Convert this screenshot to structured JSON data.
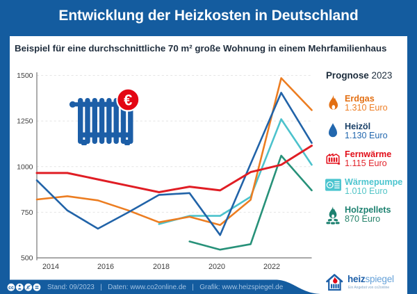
{
  "header": {
    "title": "Entwicklung der Heizkosten in Deutschland"
  },
  "subtitle": "Beispiel für eine durchschnittliche 70 m² große Wohnung in einem Mehrfamilienhaus",
  "legend": {
    "heading_bold": "Prognose",
    "heading_year": "2023",
    "items": [
      {
        "name": "Erdgas",
        "value": "1.310 Euro",
        "icon": "flame-icon",
        "name_color": "#e36f12",
        "value_color": "#ee7f26"
      },
      {
        "name": "Heizöl",
        "value": "1.130 Euro",
        "icon": "drop-icon",
        "name_color": "#1b4168",
        "value_color": "#2267ae"
      },
      {
        "name": "Fernwärme",
        "value": "1.115 Euro",
        "icon": "heating-plant-icon",
        "name_color": "#e20d18",
        "value_color": "#e2242b"
      },
      {
        "name": "Wärmepumpe",
        "value": "1.010 Euro",
        "icon": "heat-pump-icon",
        "name_color": "#4cc5cf",
        "value_color": "#52c5c7"
      },
      {
        "name": "Holzpellets",
        "value": "870 Euro",
        "icon": "pellet-fire-icon",
        "name_color": "#1d8170",
        "value_color": "#26836b"
      }
    ]
  },
  "chart_data": {
    "type": "line",
    "x": [
      2014,
      2015,
      2016,
      2017,
      2018,
      2019,
      2020,
      2021,
      2022,
      2023
    ],
    "series": [
      {
        "name": "Wärmepumpe",
        "color": "#4cc2cc",
        "values": [
          null,
          null,
          null,
          null,
          685,
          730,
          730,
          835,
          1260,
          1010
        ]
      },
      {
        "name": "Erdgas",
        "color": "#ec7d21",
        "values": [
          820,
          838,
          815,
          760,
          695,
          725,
          680,
          818,
          1485,
          1310
        ]
      },
      {
        "name": "Holzpellets",
        "color": "#279179",
        "values": [
          null,
          null,
          null,
          null,
          null,
          590,
          545,
          575,
          1060,
          870
        ]
      },
      {
        "name": "Heizöl",
        "color": "#2163a8",
        "values": [
          925,
          760,
          660,
          750,
          845,
          855,
          625,
          1015,
          1405,
          1130
        ]
      },
      {
        "name": "Fernwärme",
        "color": "#e01d24",
        "values": [
          965,
          965,
          930,
          895,
          860,
          890,
          870,
          970,
          1010,
          1115
        ]
      }
    ],
    "ylim": [
      500,
      1500
    ],
    "yticks": [
      500,
      750,
      1000,
      1250,
      1500
    ],
    "xtick_labels": [
      "2014",
      "2016",
      "2018",
      "2020",
      "2022"
    ],
    "title": "Entwicklung der Heizkosten in Deutschland",
    "ylabel": "",
    "xlabel": "",
    "grid": "horizontal-dashed",
    "legend_position": "right"
  },
  "footer": {
    "text": "Stand: 09/2023   |   Daten: www.co2online.de   |   Grafik: www.heizspiegel.de",
    "license_icons": [
      "cc",
      "by",
      "nc",
      "nd"
    ]
  },
  "logo": {
    "brand_bold": "heiz",
    "brand_light": "spiegel",
    "tagline": "Ein Angebot von co2online"
  },
  "colors": {
    "brand_blue": "#145c9f",
    "radiator_blue": "#1c5ea7",
    "badge_red": "#e30613"
  }
}
